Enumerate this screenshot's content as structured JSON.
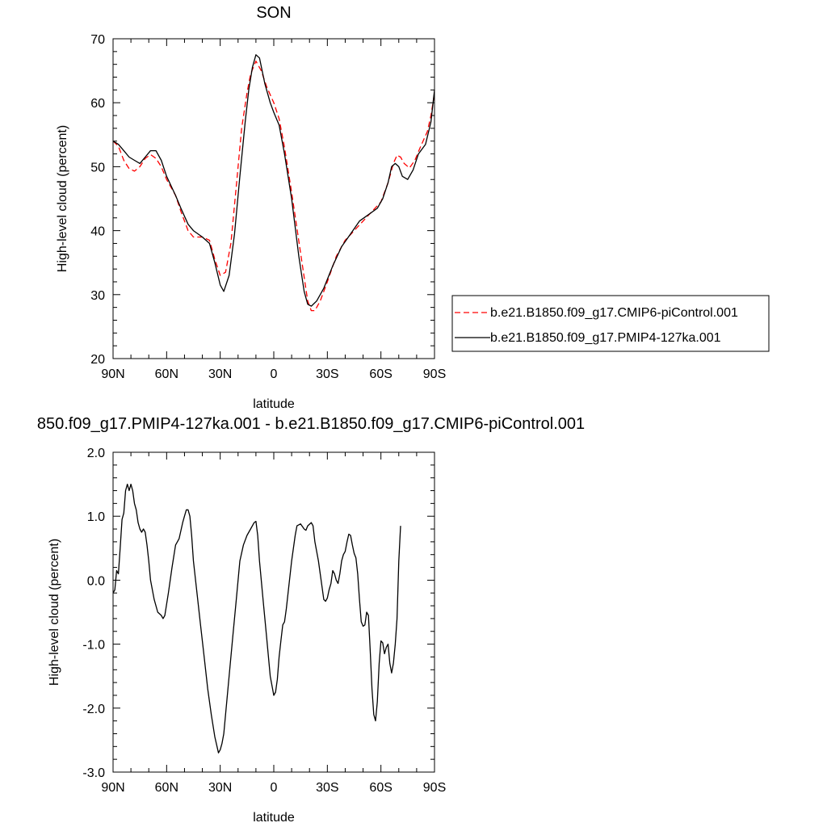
{
  "chart_data": [
    {
      "type": "line",
      "title": "SON",
      "xlabel": "latitude",
      "ylabel": "High-level cloud (percent)",
      "xlim": [
        90,
        -90
      ],
      "ylim": [
        20,
        70
      ],
      "xticks": [
        90,
        60,
        30,
        0,
        -30,
        -60,
        -90
      ],
      "xtick_labels": [
        "90N",
        "60N",
        "30N",
        "0",
        "30S",
        "60S",
        "90S"
      ],
      "yticks": [
        20,
        30,
        40,
        50,
        60,
        70
      ],
      "ytick_labels": [
        "20",
        "30",
        "40",
        "50",
        "60",
        "70"
      ],
      "legend": "right",
      "series": [
        {
          "name": "b.e21.B1850.f09_g17.CMIP6-piControl.001",
          "color": "#ff0000",
          "dash": "dashed",
          "points": [
            [
              90,
              54.0
            ],
            [
              87,
              53.2
            ],
            [
              84,
              51.0
            ],
            [
              81,
              49.7
            ],
            [
              78,
              49.3
            ],
            [
              75,
              50.0
            ],
            [
              72,
              51.3
            ],
            [
              69,
              51.9
            ],
            [
              66,
              51.3
            ],
            [
              63,
              50.0
            ],
            [
              60,
              48.0
            ],
            [
              55,
              45.5
            ],
            [
              52,
              43.0
            ],
            [
              48,
              40.0
            ],
            [
              45,
              39.0
            ],
            [
              40,
              39.0
            ],
            [
              36,
              38.5
            ],
            [
              33,
              35.5
            ],
            [
              30,
              33.0
            ],
            [
              27,
              33.5
            ],
            [
              24,
              38.0
            ],
            [
              21,
              47.0
            ],
            [
              18,
              56.0
            ],
            [
              15,
              61.5
            ],
            [
              13,
              64.5
            ],
            [
              10,
              66.5
            ],
            [
              7,
              65.0
            ],
            [
              4,
              62.5
            ],
            [
              0,
              60.0
            ],
            [
              -3,
              57.5
            ],
            [
              -6,
              53.0
            ],
            [
              -10,
              46.0
            ],
            [
              -15,
              36.5
            ],
            [
              -19,
              29.0
            ],
            [
              -21,
              27.5
            ],
            [
              -23,
              27.5
            ],
            [
              -26,
              29.0
            ],
            [
              -30,
              32.0
            ],
            [
              -35,
              36.0
            ],
            [
              -40,
              38.5
            ],
            [
              -45,
              40.0
            ],
            [
              -50,
              41.5
            ],
            [
              -55,
              43.0
            ],
            [
              -60,
              44.5
            ],
            [
              -64,
              47.5
            ],
            [
              -67,
              50.5
            ],
            [
              -69,
              51.8
            ],
            [
              -71,
              51.5
            ],
            [
              -73,
              50.5
            ],
            [
              -76,
              49.8
            ],
            [
              -79,
              51.0
            ],
            [
              -82,
              53.0
            ],
            [
              -86,
              55.5
            ],
            [
              -88,
              58.0
            ],
            [
              -90,
              61.5
            ]
          ]
        },
        {
          "name": "b.e21.B1850.f09_g17.PMIP4-127ka.001",
          "color": "#000000",
          "dash": "solid",
          "points": [
            [
              90,
              54.0
            ],
            [
              87,
              53.5
            ],
            [
              84,
              52.5
            ],
            [
              81,
              51.5
            ],
            [
              78,
              51.0
            ],
            [
              75,
              50.5
            ],
            [
              72,
              51.5
            ],
            [
              69,
              52.5
            ],
            [
              66,
              52.5
            ],
            [
              63,
              51.0
            ],
            [
              60,
              48.5
            ],
            [
              55,
              45.5
            ],
            [
              52,
              43.5
            ],
            [
              48,
              41.0
            ],
            [
              45,
              40.0
            ],
            [
              40,
              39.0
            ],
            [
              36,
              38.0
            ],
            [
              33,
              35.0
            ],
            [
              30,
              31.5
            ],
            [
              28,
              30.5
            ],
            [
              25,
              33.0
            ],
            [
              22,
              39.5
            ],
            [
              19,
              48.5
            ],
            [
              16,
              57.0
            ],
            [
              14,
              62.0
            ],
            [
              12,
              65.5
            ],
            [
              10,
              67.5
            ],
            [
              8,
              67.0
            ],
            [
              5,
              63.0
            ],
            [
              2,
              60.0
            ],
            [
              0,
              58.5
            ],
            [
              -3,
              56.5
            ],
            [
              -6,
              52.0
            ],
            [
              -10,
              45.0
            ],
            [
              -14,
              36.0
            ],
            [
              -17,
              30.5
            ],
            [
              -19,
              28.5
            ],
            [
              -21,
              28.2
            ],
            [
              -24,
              29.0
            ],
            [
              -28,
              31.0
            ],
            [
              -33,
              34.5
            ],
            [
              -38,
              37.5
            ],
            [
              -43,
              39.5
            ],
            [
              -48,
              41.5
            ],
            [
              -53,
              42.5
            ],
            [
              -58,
              43.5
            ],
            [
              -61,
              45.0
            ],
            [
              -64,
              47.5
            ],
            [
              -66,
              50.0
            ],
            [
              -68,
              50.5
            ],
            [
              -70,
              50.0
            ],
            [
              -72,
              48.5
            ],
            [
              -75,
              48.0
            ],
            [
              -78,
              49.5
            ],
            [
              -81,
              52.0
            ],
            [
              -85,
              53.5
            ],
            [
              -88,
              57.0
            ],
            [
              -90,
              62.0
            ]
          ]
        }
      ]
    },
    {
      "type": "line",
      "title": "850.f09_g17.PMIP4-127ka.001 - b.e21.B1850.f09_g17.CMIP6-piControl.001",
      "xlabel": "latitude",
      "ylabel": "High-level cloud (percent)",
      "xlim": [
        90,
        -90
      ],
      "ylim": [
        -3.0,
        2.0
      ],
      "xticks": [
        90,
        60,
        30,
        0,
        -30,
        -60,
        -90
      ],
      "xtick_labels": [
        "90N",
        "60N",
        "30N",
        "0",
        "30S",
        "60S",
        "90S"
      ],
      "yticks": [
        -3.0,
        -2.0,
        -1.0,
        0.0,
        1.0,
        2.0
      ],
      "ytick_labels": [
        "-3.0",
        "-2.0",
        "-1.0",
        "0.0",
        "1.0",
        "2.0"
      ],
      "series": [
        {
          "name": "",
          "color": "#000000",
          "dash": "solid",
          "points": [
            [
              90,
              -0.2
            ],
            [
              89,
              -0.15
            ],
            [
              88,
              0.15
            ],
            [
              87,
              0.1
            ],
            [
              86,
              0.5
            ],
            [
              85,
              0.95
            ],
            [
              84,
              1.05
            ],
            [
              83,
              1.4
            ],
            [
              82,
              1.5
            ],
            [
              81,
              1.4
            ],
            [
              80,
              1.5
            ],
            [
              79,
              1.4
            ],
            [
              78,
              1.2
            ],
            [
              77,
              1.1
            ],
            [
              76,
              0.9
            ],
            [
              75,
              0.8
            ],
            [
              74,
              0.75
            ],
            [
              73,
              0.8
            ],
            [
              72,
              0.75
            ],
            [
              71,
              0.55
            ],
            [
              70,
              0.3
            ],
            [
              69,
              0.0
            ],
            [
              67,
              -0.3
            ],
            [
              65,
              -0.5
            ],
            [
              63,
              -0.55
            ],
            [
              62,
              -0.6
            ],
            [
              61,
              -0.55
            ],
            [
              59,
              -0.2
            ],
            [
              57,
              0.2
            ],
            [
              55,
              0.55
            ],
            [
              54,
              0.6
            ],
            [
              53,
              0.65
            ],
            [
              51,
              0.9
            ],
            [
              50,
              1.0
            ],
            [
              49,
              1.1
            ],
            [
              48,
              1.1
            ],
            [
              47,
              1.0
            ],
            [
              46,
              0.7
            ],
            [
              45,
              0.3
            ],
            [
              43,
              -0.2
            ],
            [
              41,
              -0.7
            ],
            [
              39,
              -1.2
            ],
            [
              37,
              -1.7
            ],
            [
              35,
              -2.1
            ],
            [
              33,
              -2.45
            ],
            [
              31,
              -2.7
            ],
            [
              30,
              -2.65
            ],
            [
              29,
              -2.55
            ],
            [
              28,
              -2.4
            ],
            [
              27,
              -2.1
            ],
            [
              25,
              -1.5
            ],
            [
              23,
              -0.9
            ],
            [
              21,
              -0.3
            ],
            [
              19,
              0.3
            ],
            [
              17,
              0.55
            ],
            [
              15,
              0.7
            ],
            [
              13,
              0.8
            ],
            [
              11,
              0.9
            ],
            [
              10,
              0.92
            ],
            [
              9,
              0.7
            ],
            [
              8,
              0.3
            ],
            [
              6,
              -0.3
            ],
            [
              4,
              -0.9
            ],
            [
              2,
              -1.5
            ],
            [
              1,
              -1.65
            ],
            [
              0,
              -1.8
            ],
            [
              -1,
              -1.75
            ],
            [
              -2,
              -1.55
            ],
            [
              -3,
              -1.2
            ],
            [
              -4,
              -0.95
            ],
            [
              -5,
              -0.7
            ],
            [
              -6,
              -0.65
            ],
            [
              -7,
              -0.45
            ],
            [
              -8,
              -0.2
            ],
            [
              -10,
              0.3
            ],
            [
              -12,
              0.7
            ],
            [
              -13,
              0.85
            ],
            [
              -15,
              0.88
            ],
            [
              -17,
              0.8
            ],
            [
              -18,
              0.78
            ],
            [
              -19,
              0.85
            ],
            [
              -21,
              0.9
            ],
            [
              -22,
              0.85
            ],
            [
              -23,
              0.6
            ],
            [
              -25,
              0.3
            ],
            [
              -26,
              0.1
            ],
            [
              -27,
              -0.1
            ],
            [
              -28,
              -0.3
            ],
            [
              -29,
              -0.33
            ],
            [
              -30,
              -0.28
            ],
            [
              -31,
              -0.15
            ],
            [
              -32,
              -0.05
            ],
            [
              -33,
              0.15
            ],
            [
              -34,
              0.1
            ],
            [
              -35,
              0.0
            ],
            [
              -36,
              -0.05
            ],
            [
              -37,
              0.1
            ],
            [
              -38,
              0.3
            ],
            [
              -39,
              0.4
            ],
            [
              -40,
              0.45
            ],
            [
              -41,
              0.6
            ],
            [
              -42,
              0.72
            ],
            [
              -43,
              0.7
            ],
            [
              -44,
              0.55
            ],
            [
              -45,
              0.42
            ],
            [
              -46,
              0.35
            ],
            [
              -47,
              0.1
            ],
            [
              -48,
              -0.3
            ],
            [
              -49,
              -0.65
            ],
            [
              -50,
              -0.72
            ],
            [
              -51,
              -0.7
            ],
            [
              -52,
              -0.5
            ],
            [
              -53,
              -0.55
            ],
            [
              -54,
              -1.1
            ],
            [
              -55,
              -1.7
            ],
            [
              -56,
              -2.1
            ],
            [
              -57,
              -2.2
            ],
            [
              -58,
              -1.9
            ],
            [
              -59,
              -1.3
            ],
            [
              -60,
              -0.95
            ],
            [
              -61,
              -0.98
            ],
            [
              -62,
              -1.15
            ],
            [
              -63,
              -1.05
            ],
            [
              -64,
              -1.0
            ],
            [
              -65,
              -1.3
            ],
            [
              -66,
              -1.45
            ],
            [
              -67,
              -1.3
            ],
            [
              -68,
              -1.0
            ],
            [
              -69,
              -0.6
            ],
            [
              -70,
              0.3
            ],
            [
              -71,
              0.85
            ]
          ]
        }
      ]
    }
  ]
}
